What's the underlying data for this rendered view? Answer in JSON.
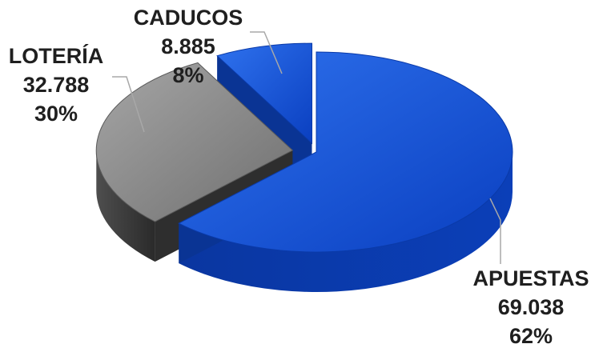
{
  "chart_data": {
    "type": "pie",
    "title": "",
    "slices": [
      {
        "category": "APUESTAS",
        "value_text": "69.038",
        "value": 69038,
        "percent_text": "62%",
        "percent": 62,
        "color": "#1255d6"
      },
      {
        "category": "LOTERÍA",
        "value_text": "32.788",
        "value": 32788,
        "percent_text": "30%",
        "percent": 30,
        "color": "#8a8a8a"
      },
      {
        "category": "CADUCOS",
        "value_text": "8.885",
        "value": 8885,
        "percent_text": "8%",
        "percent": 8,
        "color": "#0d47c9"
      }
    ],
    "three_d": true,
    "exploded": true,
    "legend": "none"
  }
}
